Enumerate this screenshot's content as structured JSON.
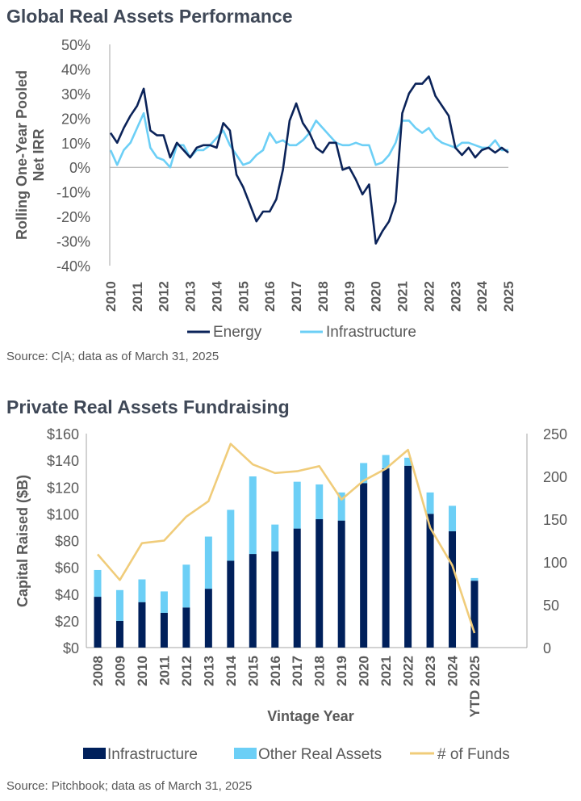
{
  "colors": {
    "energy": "#0b2359",
    "infrastructure_line": "#6ccff6",
    "infra_bar": "#00205b",
    "other_bar": "#6ccff6",
    "funds": "#f0cc7a",
    "axis": "#a6a6a6"
  },
  "chart_data": [
    {
      "type": "line",
      "title": "Global Real Assets Performance",
      "ylabel": "Rolling One-Year Pooled Net IRR",
      "xlabel": "",
      "ylim": [
        -40,
        50
      ],
      "yticks": [
        "50%",
        "40%",
        "30%",
        "20%",
        "10%",
        "0%",
        "-10%",
        "-20%",
        "-30%",
        "-40%"
      ],
      "ytick_values": [
        50,
        40,
        30,
        20,
        10,
        0,
        -10,
        -20,
        -30,
        -40
      ],
      "xticks": [
        "2010",
        "2011",
        "2012",
        "2013",
        "2014",
        "2015",
        "2016",
        "2017",
        "2018",
        "2019",
        "2020",
        "2021",
        "2022",
        "2023",
        "2024",
        "2025"
      ],
      "x_frequency": "quarterly",
      "x_start": 2010.0,
      "legend_placement": "bottom",
      "series": [
        {
          "name": "Energy",
          "values": [
            14,
            10,
            16,
            21,
            25,
            32,
            15,
            13,
            13,
            4,
            10,
            7,
            4,
            8,
            9,
            9,
            8,
            18,
            15,
            -3,
            -8,
            -15,
            -22,
            -18,
            -18,
            -13,
            -1,
            19,
            26,
            18,
            14,
            8,
            6,
            10,
            10,
            -1,
            0,
            -5,
            -11,
            -7,
            -31,
            -26,
            -22,
            -14,
            22,
            30,
            34,
            34,
            37,
            29,
            25,
            21,
            8,
            5,
            8,
            4,
            7,
            8,
            6,
            8,
            6
          ]
        },
        {
          "name": "Infrastructure",
          "values": [
            7,
            1,
            7,
            10,
            16,
            22,
            8,
            4,
            3,
            0,
            9,
            9,
            4,
            7,
            7,
            9,
            12,
            15,
            9,
            5,
            1,
            2,
            5,
            7,
            14,
            10,
            11,
            9,
            9,
            11,
            14,
            19,
            16,
            13,
            10,
            9,
            9,
            10,
            9,
            9,
            1,
            2,
            5,
            10,
            19,
            19,
            16,
            14,
            16,
            12,
            10,
            9,
            8,
            10,
            10,
            9,
            8,
            8,
            11,
            7,
            7
          ]
        }
      ],
      "source": "Source: C|A; data as of March 31, 2025"
    },
    {
      "type": "bar",
      "stacked": true,
      "title": "Private Real Assets Fundraising",
      "ylabel": "Capital Raised ($B)",
      "xlabel": "Vintage Year",
      "ylim": [
        0,
        160
      ],
      "y2lim": [
        0,
        250
      ],
      "yticks": [
        "$160",
        "$140",
        "$120",
        "$100",
        "$80",
        "$60",
        "$40",
        "$20",
        "$0"
      ],
      "ytick_values": [
        160,
        140,
        120,
        100,
        80,
        60,
        40,
        20,
        0
      ],
      "y2ticks": [
        "250",
        "200",
        "150",
        "100",
        "50",
        "0"
      ],
      "y2tick_values": [
        250,
        200,
        150,
        100,
        50,
        0
      ],
      "categories": [
        "2008",
        "2009",
        "2010",
        "2011",
        "2012",
        "2013",
        "2014",
        "2015",
        "2016",
        "2017",
        "2018",
        "2019",
        "2020",
        "2021",
        "2022",
        "2023",
        "2024",
        "YTD 2025"
      ],
      "legend_placement": "bottom",
      "series": [
        {
          "name": "Infrastructure",
          "values": [
            38,
            20,
            34,
            26,
            30,
            44,
            65,
            70,
            72,
            89,
            96,
            95,
            123,
            134,
            136,
            100,
            87,
            50
          ]
        },
        {
          "name": "Other Real Assets",
          "values": [
            20,
            23,
            17,
            16,
            32,
            39,
            38,
            58,
            20,
            35,
            26,
            21,
            15,
            10,
            6,
            16,
            19,
            2
          ]
        },
        {
          "name": "# of Funds",
          "axis": "right",
          "type": "line",
          "values": [
            109,
            79,
            122,
            125,
            153,
            171,
            238,
            214,
            204,
            206,
            212,
            173,
            195,
            209,
            231,
            140,
            96,
            17
          ]
        }
      ],
      "source": "Source: Pitchbook; data as of March 31, 2025"
    }
  ]
}
